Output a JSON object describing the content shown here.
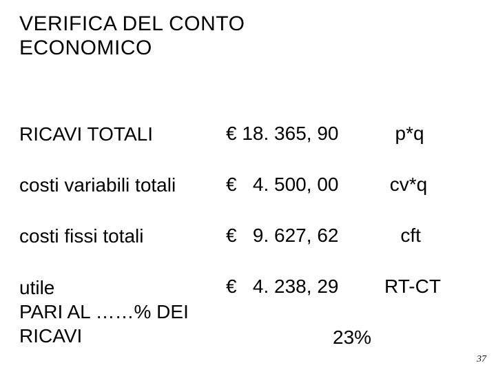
{
  "title_line1": "VERIFICA DEL CONTO",
  "title_line2": "ECONOMICO",
  "rows": {
    "r1": {
      "label": "RICAVI TOTALI",
      "amount": "€ 18. 365, 90",
      "formula": "  p*q"
    },
    "r2": {
      "label": "costi variabili totali",
      "amount": "€   4. 500, 00",
      "formula": " cv*q"
    },
    "r3": {
      "label": "costi fissi totali",
      "amount": "€   9. 627, 62",
      "formula": "   cft"
    },
    "r4": {
      "label_l1": "utile",
      "label_l2": "PARI AL ……% DEI",
      "label_l3": "RICAVI",
      "amount": "€   4. 238, 29",
      "formula": "RT-CT"
    }
  },
  "percent": "23%",
  "page_number": "37",
  "colors": {
    "bg": "#ffffff",
    "text": "#000000"
  },
  "fontsize": {
    "title": 30,
    "body": 28,
    "pagenum": 14
  }
}
